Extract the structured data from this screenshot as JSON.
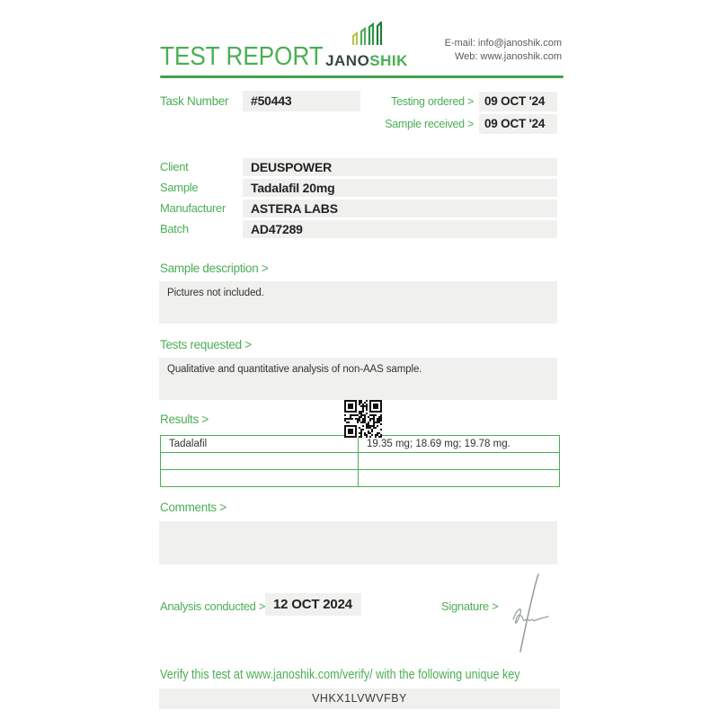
{
  "header": {
    "title": "TEST REPORT",
    "logo_jano": "JANO",
    "logo_shik": "SHIK",
    "email_line": "E-mail: info@janoshik.com",
    "web_line": "Web: www.janoshik.com"
  },
  "task": {
    "label": "Task Number",
    "value": "#50443",
    "ordered_label": "Testing ordered >",
    "ordered_value": "09 OCT '24",
    "received_label": "Sample received >",
    "received_value": "09 OCT '24"
  },
  "info": {
    "rows": [
      {
        "label": "Client",
        "value": "DEUSPOWER"
      },
      {
        "label": "Sample",
        "value": "Tadalafil 20mg"
      },
      {
        "label": "Manufacturer",
        "value": "ASTERA LABS"
      },
      {
        "label": "Batch",
        "value": "AD47289"
      }
    ]
  },
  "sample_description": {
    "heading": "Sample description >",
    "text": "Pictures not included."
  },
  "tests_requested": {
    "heading": "Tests requested >",
    "text": "Qualitative and quantitative analysis of non-AAS sample."
  },
  "results": {
    "heading": "Results >",
    "qr_icon": "qr-code",
    "table_rows": [
      {
        "name": "Tadalafil",
        "value": "19.35 mg; 18.69 mg; 19.78 mg."
      },
      {
        "name": "",
        "value": ""
      },
      {
        "name": "",
        "value": ""
      }
    ]
  },
  "comments": {
    "heading": "Comments >",
    "text": ""
  },
  "footer": {
    "analysis_label": "Analysis conducted >",
    "analysis_value": "12 OCT 2024",
    "signature_label": "Signature >",
    "verify_text": "Verify this test at www.janoshik.com/verify/ with the following unique key",
    "unique_key": "VHKX1LVWVFBY"
  },
  "colors": {
    "accent_green": "#4cae54",
    "rule_green": "#44a04d",
    "logo_dark": "#3a4742",
    "logo_bar_yellow": "#b9c24a",
    "field_bg": "#f0f0ef",
    "text_dark": "#222222",
    "muted_text": "#5a5a5a",
    "signature_gray": "#9aa0a0"
  }
}
